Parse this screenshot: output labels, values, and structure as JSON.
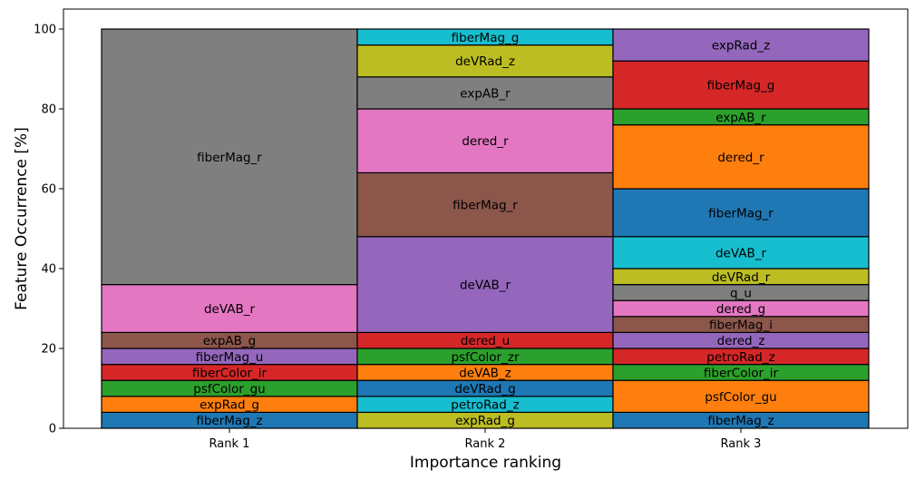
{
  "chart_data": {
    "type": "bar",
    "stacked": true,
    "xlabel": "Importance ranking",
    "ylabel": "Feature Occurrence [%]",
    "ylim": [
      0,
      105
    ],
    "yticks": [
      0,
      20,
      40,
      60,
      80,
      100
    ],
    "grid": false,
    "legend": "none",
    "categories": [
      "Rank 1",
      "Rank 2",
      "Rank 3"
    ],
    "stacks": [
      {
        "category": "Rank 1",
        "segments": [
          {
            "label": "fiberMag_z",
            "value": 4,
            "color": "#1f77b4"
          },
          {
            "label": "expRad_g",
            "value": 4,
            "color": "#ff7f0e"
          },
          {
            "label": "psfColor_gu",
            "value": 4,
            "color": "#2ca02c"
          },
          {
            "label": "fiberColor_ir",
            "value": 4,
            "color": "#d62728"
          },
          {
            "label": "fiberMag_u",
            "value": 4,
            "color": "#9467bd"
          },
          {
            "label": "expAB_g",
            "value": 4,
            "color": "#8c564b"
          },
          {
            "label": "deVAB_r",
            "value": 12,
            "color": "#e377c2"
          },
          {
            "label": "fiberMag_r",
            "value": 64,
            "color": "#7f7f7f"
          }
        ]
      },
      {
        "category": "Rank 2",
        "segments": [
          {
            "label": "expRad_g",
            "value": 4,
            "color": "#bcbd22"
          },
          {
            "label": "petroRad_z",
            "value": 4,
            "color": "#17becf"
          },
          {
            "label": "deVRad_g",
            "value": 4,
            "color": "#1f77b4"
          },
          {
            "label": "deVAB_z",
            "value": 4,
            "color": "#ff7f0e"
          },
          {
            "label": "psfColor_zr",
            "value": 4,
            "color": "#2ca02c"
          },
          {
            "label": "dered_u",
            "value": 4,
            "color": "#d62728"
          },
          {
            "label": "deVAB_r",
            "value": 24,
            "color": "#9467bd"
          },
          {
            "label": "fiberMag_r",
            "value": 16,
            "color": "#8c564b"
          },
          {
            "label": "dered_r",
            "value": 16,
            "color": "#e377c2"
          },
          {
            "label": "expAB_r",
            "value": 8,
            "color": "#7f7f7f"
          },
          {
            "label": "deVRad_z",
            "value": 8,
            "color": "#bcbd22"
          },
          {
            "label": "fiberMag_g",
            "value": 4,
            "color": "#17becf"
          }
        ]
      },
      {
        "category": "Rank 3",
        "segments": [
          {
            "label": "fiberMag_z",
            "value": 4,
            "color": "#1f77b4"
          },
          {
            "label": "psfColor_gu",
            "value": 8,
            "color": "#ff7f0e"
          },
          {
            "label": "fiberColor_ir",
            "value": 4,
            "color": "#2ca02c"
          },
          {
            "label": "petroRad_z",
            "value": 4,
            "color": "#d62728"
          },
          {
            "label": "dered_z",
            "value": 4,
            "color": "#9467bd"
          },
          {
            "label": "fiberMag_i",
            "value": 4,
            "color": "#8c564b"
          },
          {
            "label": "dered_g",
            "value": 4,
            "color": "#e377c2"
          },
          {
            "label": "q_u",
            "value": 4,
            "color": "#7f7f7f"
          },
          {
            "label": "deVRad_r",
            "value": 4,
            "color": "#bcbd22"
          },
          {
            "label": "deVAB_r",
            "value": 8,
            "color": "#17becf"
          },
          {
            "label": "fiberMag_r",
            "value": 12,
            "color": "#1f77b4"
          },
          {
            "label": "dered_r",
            "value": 16,
            "color": "#ff7f0e"
          },
          {
            "label": "expAB_r",
            "value": 4,
            "color": "#2ca02c"
          },
          {
            "label": "fiberMag_g",
            "value": 12,
            "color": "#d62728"
          },
          {
            "label": "expRad_z",
            "value": 8,
            "color": "#9467bd"
          }
        ]
      }
    ]
  }
}
